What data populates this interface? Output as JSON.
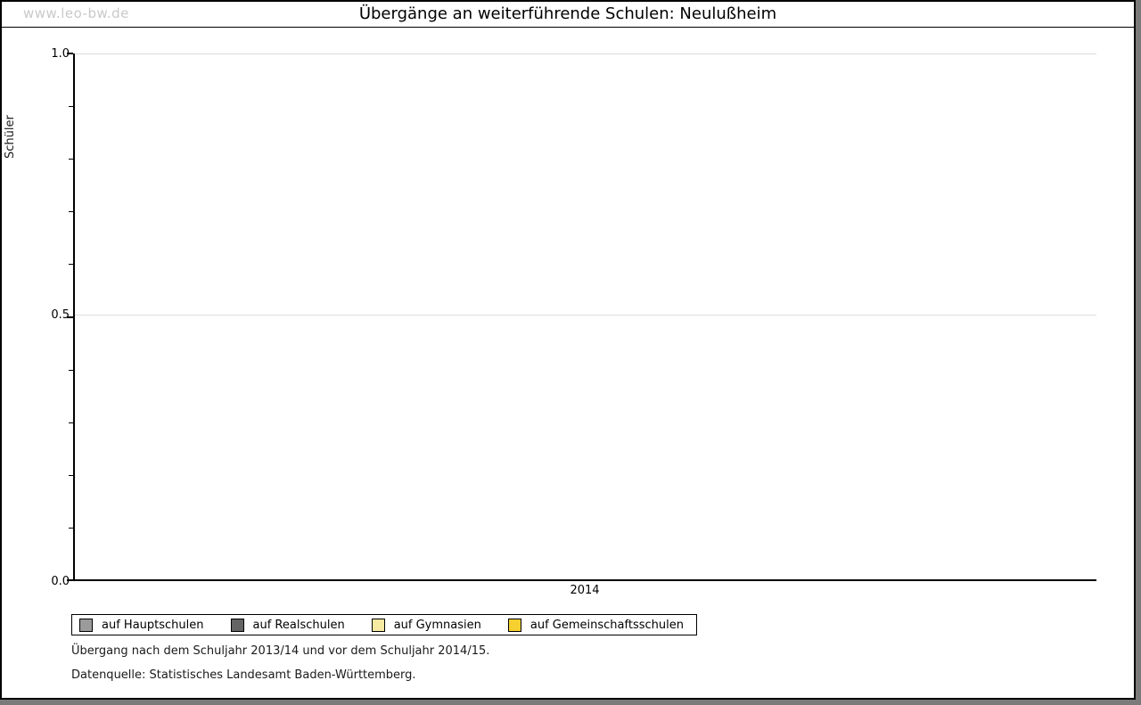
{
  "watermark": "www.leo-bw.de",
  "title": "Übergänge an weiterführende Schulen: Neulußheim",
  "axis": {
    "y_label": "Schüler",
    "y_tick_top": "1.0",
    "y_tick_mid": "0.5",
    "y_tick_bottom": "0.0",
    "x_tick": "2014"
  },
  "chart_data": {
    "type": "bar",
    "title": "Übergänge an weiterführende Schulen: Neulußheim",
    "xlabel": "",
    "ylabel": "Schüler",
    "categories": [
      "2014"
    ],
    "ylim": [
      0,
      1
    ],
    "yticks": [
      0.0,
      0.5,
      1.0
    ],
    "minor_ytick_step": 0.1,
    "grid": "horizontal gridlines at major ticks",
    "legend_position": "bottom-left, boxed, horizontal",
    "note": "plot area is empty - no bars are drawn for 2014",
    "series": [
      {
        "name": "auf Hauptschulen",
        "color": "#9b9b9b",
        "values": [
          0
        ]
      },
      {
        "name": "auf Realschulen",
        "color": "#646464",
        "values": [
          0
        ]
      },
      {
        "name": "auf Gymnasien",
        "color": "#f7e9a2",
        "values": [
          0
        ]
      },
      {
        "name": "auf Gemeinschaftsschulen",
        "color": "#f6d02f",
        "values": [
          0
        ]
      }
    ]
  },
  "footer": {
    "line1": "Übergang nach dem Schuljahr 2013/14 und vor dem Schuljahr 2014/15.",
    "line2": "Datenquelle: Statistisches Landesamt Baden-Württemberg."
  },
  "colors": {
    "frame_border": "#000000",
    "drop_shadow": "#7a7a7a",
    "gridline": "#dcdcdc",
    "watermark_text": "#c9c9c9"
  }
}
